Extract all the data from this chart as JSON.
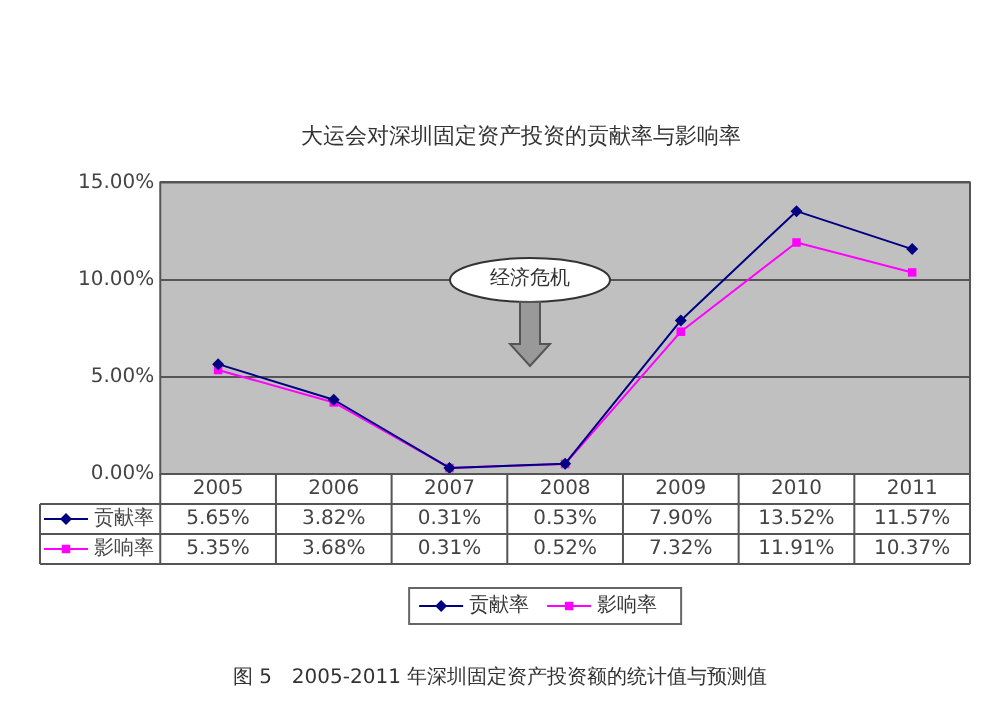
{
  "chart_data": {
    "type": "line",
    "title": "大运会对深圳固定资产投资的贡献率与影响率",
    "categories": [
      "2005",
      "2006",
      "2007",
      "2008",
      "2009",
      "2010",
      "2011"
    ],
    "series": [
      {
        "name": "贡献率",
        "color": "#000080",
        "marker": "diamond",
        "values": [
          5.65,
          3.82,
          0.31,
          0.53,
          7.9,
          13.52,
          11.57
        ],
        "value_labels": [
          "5.65%",
          "3.82%",
          "0.31%",
          "0.53%",
          "7.90%",
          "13.52%",
          "11.57%"
        ]
      },
      {
        "name": "影响率",
        "color": "#ff00ff",
        "marker": "square",
        "values": [
          5.35,
          3.68,
          0.31,
          0.52,
          7.32,
          11.91,
          10.37
        ],
        "value_labels": [
          "5.35%",
          "3.68%",
          "0.31%",
          "0.52%",
          "7.32%",
          "11.91%",
          "10.37%"
        ]
      }
    ],
    "ylim": [
      0,
      15
    ],
    "yticks": [
      {
        "value": 0,
        "label": "0.00%"
      },
      {
        "value": 5,
        "label": "5.00%"
      },
      {
        "value": 10,
        "label": "10.00%"
      },
      {
        "value": 15,
        "label": "15.00%"
      }
    ],
    "grid": "y",
    "legend": "bottom",
    "line_style": "solid",
    "annotations": [
      "经济危机",
      "图 5　2005-2011 年深圳固定资产投资额的统计值与预测值"
    ]
  }
}
